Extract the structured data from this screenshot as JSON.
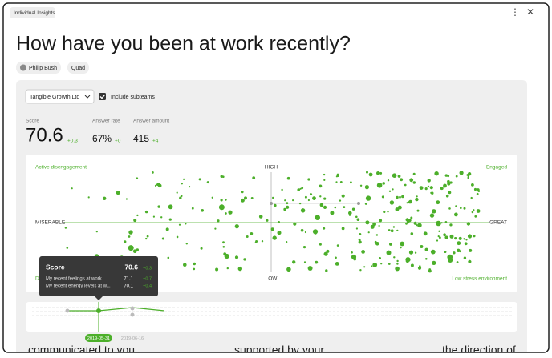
{
  "tab": "Individual Insights",
  "title": "How have you been at work recently?",
  "filters": {
    "person": "Philip Bush",
    "group": "Quad",
    "company": "Tangible Growth Ltd",
    "checkbox": "Include subteams"
  },
  "stats": [
    {
      "label": "Score",
      "value": "70.6",
      "change": "+0.3"
    },
    {
      "label": "Answer rate",
      "value": "67%",
      "change": "+0"
    },
    {
      "label": "Answer amount",
      "value": "415",
      "change": "+4"
    }
  ],
  "quadrant": {
    "top_left": "Active disengagement",
    "top": "HIGH",
    "top_right": "Engaged",
    "left": "MISERABLE",
    "right": "GREAT",
    "bottom": "LOW",
    "bottom_left": "D",
    "bottom_right": "Low stress environment"
  },
  "tooltip": {
    "title": "Score",
    "value": "70.6",
    "change": "+0.3",
    "rows": [
      {
        "label": "My recent feelings at work",
        "value": "71.1",
        "change": "+0.7"
      },
      {
        "label": "My recent energy levels at w...",
        "value": "70.1",
        "change": "+0.4"
      }
    ]
  },
  "timeline": {
    "selected": "2019-05-31",
    "next": "2019-06-16"
  },
  "below": [
    "communicated to you",
    "supported by your",
    "the direction of"
  ]
}
